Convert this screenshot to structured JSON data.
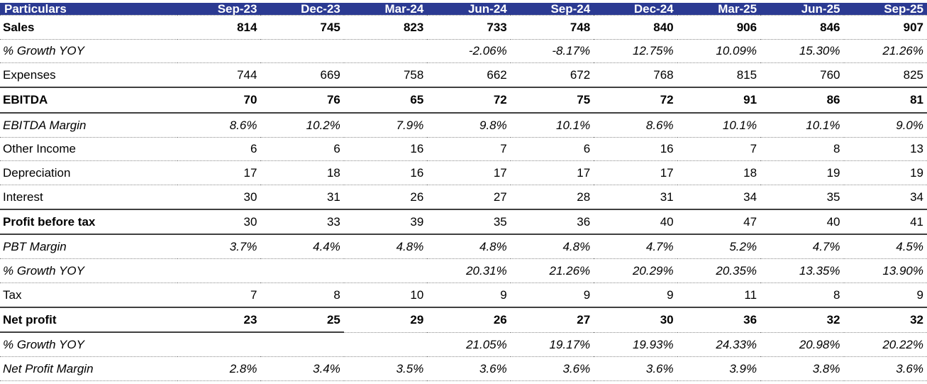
{
  "colors": {
    "header_bg": "#2B3A92",
    "header_text": "#FFFFFF",
    "solid_border": "#3F3F3F",
    "dotted_border": "#8A8A8A",
    "body_text": "#000000"
  },
  "chart_data": {
    "type": "table",
    "header_label": "Particulars",
    "columns": [
      "Sep-23",
      "Dec-23",
      "Mar-24",
      "Jun-24",
      "Sep-24",
      "Dec-24",
      "Mar-25",
      "Jun-25",
      "Sep-25"
    ],
    "rows": [
      {
        "label": "Sales",
        "format": "bold",
        "bottom": "dotted",
        "values": [
          "814",
          "745",
          "823",
          "733",
          "748",
          "840",
          "906",
          "846",
          "907"
        ]
      },
      {
        "label": "% Growth YOY",
        "format": "italic",
        "bottom": "dotted",
        "values": [
          "",
          "",
          "",
          "-2.06%",
          "-8.17%",
          "12.75%",
          "10.09%",
          "15.30%",
          "21.26%"
        ]
      },
      {
        "label": "Expenses",
        "format": "normal",
        "bottom": "solid",
        "values": [
          "744",
          "669",
          "758",
          "662",
          "672",
          "768",
          "815",
          "760",
          "825"
        ]
      },
      {
        "label": "EBITDA",
        "format": "bold",
        "bottom": "solid",
        "values": [
          "70",
          "76",
          "65",
          "72",
          "75",
          "72",
          "91",
          "86",
          "81"
        ]
      },
      {
        "label": "EBITDA Margin",
        "format": "italic",
        "bottom": "dotted",
        "values": [
          "8.6%",
          "10.2%",
          "7.9%",
          "9.8%",
          "10.1%",
          "8.6%",
          "10.1%",
          "10.1%",
          "9.0%"
        ]
      },
      {
        "label": "Other Income",
        "format": "normal",
        "bottom": "dotted",
        "values": [
          "6",
          "6",
          "16",
          "7",
          "6",
          "16",
          "7",
          "8",
          "13"
        ]
      },
      {
        "label": "Depreciation",
        "format": "normal",
        "bottom": "dotted",
        "values": [
          "17",
          "18",
          "16",
          "17",
          "17",
          "17",
          "18",
          "19",
          "19"
        ]
      },
      {
        "label": "Interest",
        "format": "normal",
        "bottom": "solid",
        "values": [
          "30",
          "31",
          "26",
          "27",
          "28",
          "31",
          "34",
          "35",
          "34"
        ]
      },
      {
        "label": "Profit before tax",
        "format": "bold-label",
        "bottom": "solid",
        "values": [
          "30",
          "33",
          "39",
          "35",
          "36",
          "40",
          "47",
          "40",
          "41"
        ]
      },
      {
        "label": "PBT Margin",
        "format": "italic",
        "bottom": "dotted",
        "values": [
          "3.7%",
          "4.4%",
          "4.8%",
          "4.8%",
          "4.8%",
          "4.7%",
          "5.2%",
          "4.7%",
          "4.5%"
        ]
      },
      {
        "label": "% Growth YOY",
        "format": "italic",
        "bottom": "dotted",
        "values": [
          "",
          "",
          "",
          "20.31%",
          "21.26%",
          "20.29%",
          "20.35%",
          "13.35%",
          "13.90%"
        ]
      },
      {
        "label": "Tax",
        "format": "normal",
        "bottom": "solid",
        "values": [
          "7",
          "8",
          "10",
          "9",
          "9",
          "9",
          "11",
          "8",
          "9"
        ]
      },
      {
        "label": "Net profit",
        "format": "bold",
        "bottom": "mixed",
        "solid_cells": 3,
        "values": [
          "23",
          "25",
          "29",
          "26",
          "27",
          "30",
          "36",
          "32",
          "32"
        ]
      },
      {
        "label": "% Growth YOY",
        "format": "italic",
        "bottom": "dotted",
        "values": [
          "",
          "",
          "",
          "21.05%",
          "19.17%",
          "19.93%",
          "24.33%",
          "20.98%",
          "20.22%"
        ]
      },
      {
        "label": "Net Profit Margin",
        "format": "italic",
        "bottom": "dotted",
        "values": [
          "2.8%",
          "3.4%",
          "3.5%",
          "3.6%",
          "3.6%",
          "3.6%",
          "3.9%",
          "3.8%",
          "3.6%"
        ]
      }
    ]
  }
}
